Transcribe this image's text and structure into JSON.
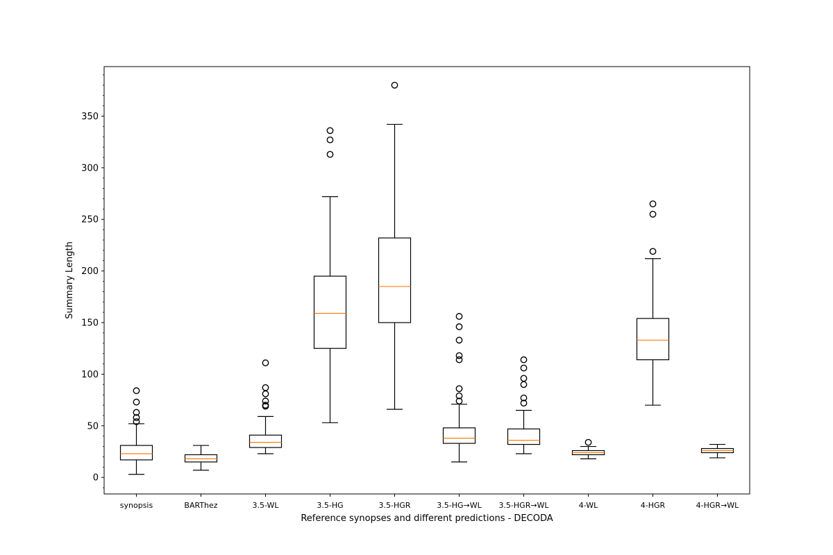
{
  "chart_data": {
    "type": "box",
    "title": "",
    "xlabel": "Reference synopses and different predictions - DECODA",
    "ylabel": "Summary Length",
    "ylim": [
      -16,
      398
    ],
    "yticks": [
      0,
      50,
      100,
      150,
      200,
      250,
      300,
      350
    ],
    "grid": false,
    "colors": {
      "box": "#000000",
      "median": "#ff7f0e"
    },
    "categories": [
      "synopsis",
      "BARThez",
      "3.5-WL",
      "3.5-HG",
      "3.5-HGR",
      "3.5-HG→WL",
      "3.5-HGR→WL",
      "4-WL",
      "4-HGR",
      "4-HGR→WL"
    ],
    "boxes": [
      {
        "category": "synopsis",
        "whisker_low": 3,
        "q1": 17,
        "median": 23,
        "q3": 31,
        "whisker_high": 52,
        "outliers": [
          54,
          58,
          63,
          73,
          84
        ]
      },
      {
        "category": "BARThez",
        "whisker_low": 7,
        "q1": 15,
        "median": 18,
        "q3": 22,
        "whisker_high": 31,
        "outliers": []
      },
      {
        "category": "3.5-WL",
        "whisker_low": 23,
        "q1": 29,
        "median": 34,
        "q3": 41,
        "whisker_high": 59,
        "outliers": [
          69,
          70,
          74,
          81,
          87,
          111
        ]
      },
      {
        "category": "3.5-HG",
        "whisker_low": 53,
        "q1": 125,
        "median": 159,
        "q3": 195,
        "whisker_high": 272,
        "outliers": [
          313,
          327,
          336
        ]
      },
      {
        "category": "3.5-HGR",
        "whisker_low": 66,
        "q1": 150,
        "median": 185,
        "q3": 232,
        "whisker_high": 342,
        "outliers": [
          380
        ]
      },
      {
        "category": "3.5-HG→WL",
        "whisker_low": 15,
        "q1": 33,
        "median": 38,
        "q3": 48,
        "whisker_high": 71,
        "outliers": [
          74,
          79,
          86,
          114,
          118,
          133,
          146,
          156
        ]
      },
      {
        "category": "3.5-HGR→WL",
        "whisker_low": 23,
        "q1": 32,
        "median": 36,
        "q3": 47,
        "whisker_high": 65,
        "outliers": [
          72,
          77,
          90,
          96,
          106,
          114
        ]
      },
      {
        "category": "4-WL",
        "whisker_low": 18,
        "q1": 22,
        "median": 24,
        "q3": 26,
        "whisker_high": 30,
        "outliers": [
          34
        ]
      },
      {
        "category": "4-HGR",
        "whisker_low": 70,
        "q1": 114,
        "median": 133,
        "q3": 154,
        "whisker_high": 212,
        "outliers": [
          219,
          255,
          265
        ]
      },
      {
        "category": "4-HGR→WL",
        "whisker_low": 19,
        "q1": 24,
        "median": 26,
        "q3": 28,
        "whisker_high": 32,
        "outliers": []
      }
    ]
  }
}
